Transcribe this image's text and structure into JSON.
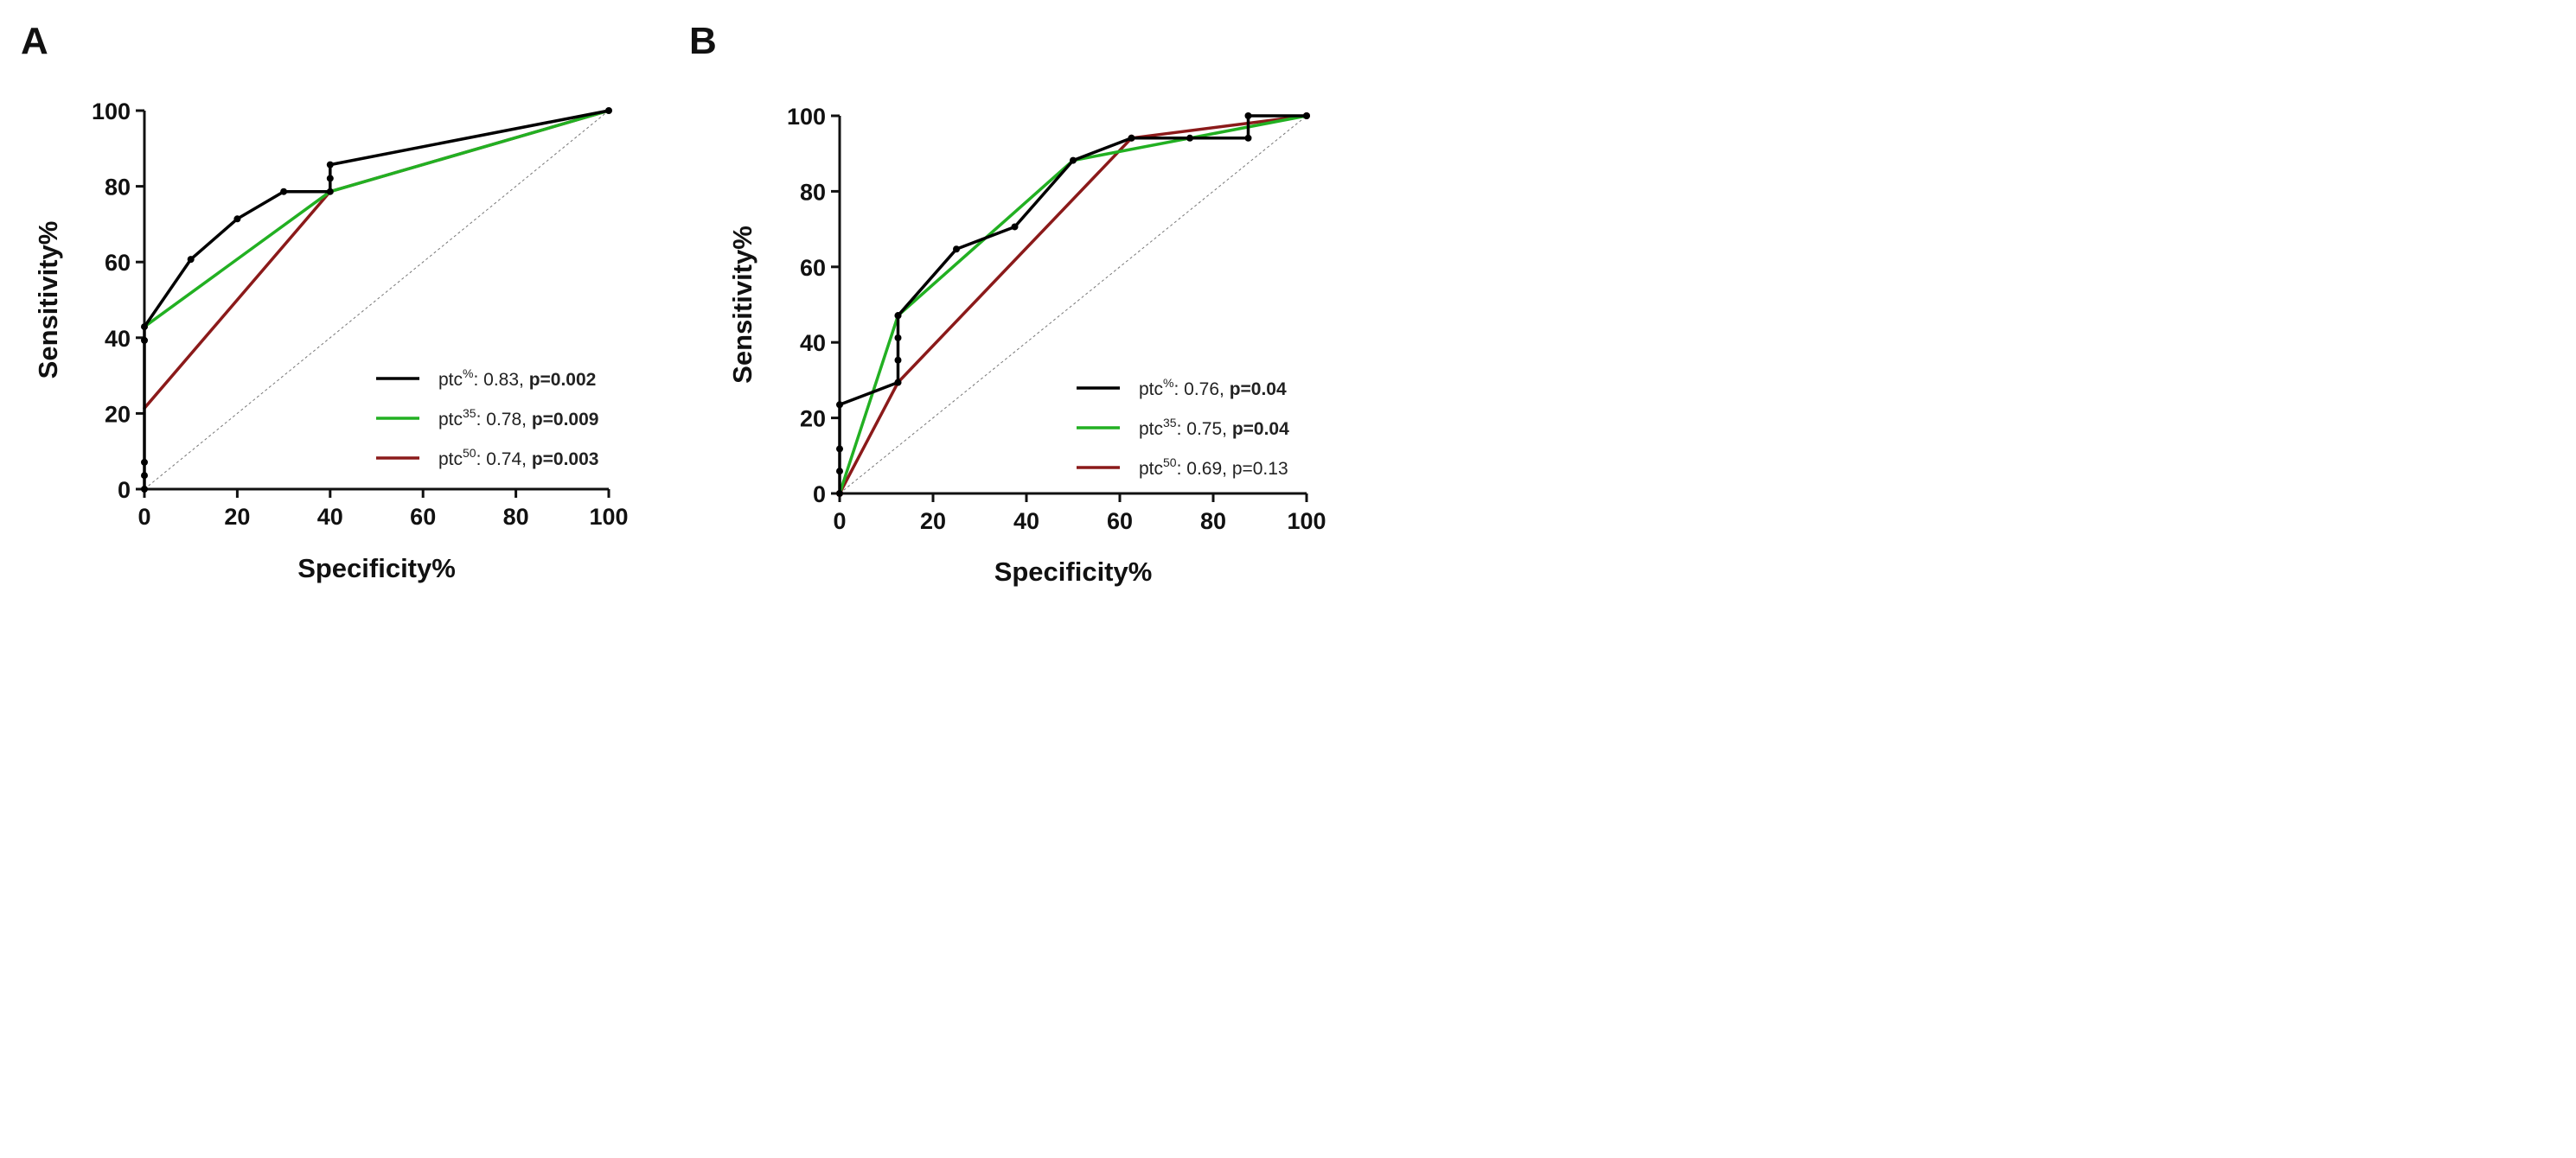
{
  "chart_data": [
    {
      "type": "line",
      "panel": "A",
      "xlabel": "Specificity%",
      "ylabel": "Sensitivity%",
      "xlim": [
        0,
        100
      ],
      "ylim": [
        0,
        100
      ],
      "xticks": [
        "0",
        "20",
        "40",
        "60",
        "80",
        "100"
      ],
      "yticks": [
        "0",
        "20",
        "40",
        "60",
        "80",
        "100"
      ],
      "reference_line": true,
      "legend_position": "bottom-right",
      "series": [
        {
          "name": "ptc%",
          "label_base": "ptc",
          "label_sup": "%",
          "label_value": ": 0.83, ",
          "label_p": "p=0.002",
          "p_bold": true,
          "color": "#000000",
          "markers": true,
          "x": [
            0,
            0,
            0,
            0,
            0,
            10,
            20,
            30,
            40,
            40,
            40,
            100
          ],
          "y": [
            0,
            3.6,
            7.1,
            39.3,
            42.9,
            60.7,
            71.4,
            78.6,
            78.6,
            82.1,
            85.7,
            100
          ]
        },
        {
          "name": "ptc35",
          "label_base": "ptc",
          "label_sup": "35",
          "label_value": ": 0.78, ",
          "label_p": "p=0.009",
          "p_bold": true,
          "color": "#22b022",
          "markers": false,
          "x": [
            0,
            40,
            100
          ],
          "y": [
            42.9,
            78.6,
            100
          ]
        },
        {
          "name": "ptc50",
          "label_base": "ptc",
          "label_sup": "50",
          "label_value": ": 0.74, ",
          "label_p": "p=0.003",
          "p_bold": true,
          "color": "#8b1a1a",
          "markers": false,
          "x": [
            0,
            40,
            100
          ],
          "y": [
            21.4,
            78.6,
            100
          ]
        }
      ]
    },
    {
      "type": "line",
      "panel": "B",
      "xlabel": "Specificity%",
      "ylabel": "Sensitivity%",
      "xlim": [
        0,
        100
      ],
      "ylim": [
        0,
        100
      ],
      "xticks": [
        "0",
        "20",
        "40",
        "60",
        "80",
        "100"
      ],
      "yticks": [
        "0",
        "20",
        "40",
        "60",
        "80",
        "100"
      ],
      "reference_line": true,
      "legend_position": "bottom-right",
      "series": [
        {
          "name": "ptc%",
          "label_base": "ptc",
          "label_sup": "%",
          "label_value": ": 0.76, ",
          "label_p": "p=0.04",
          "p_bold": true,
          "color": "#000000",
          "markers": true,
          "x": [
            0,
            0,
            0,
            0,
            12.5,
            12.5,
            12.5,
            12.5,
            12.5,
            25,
            37.5,
            50,
            62.5,
            75,
            87.5,
            87.5,
            100
          ],
          "y": [
            0,
            5.9,
            11.8,
            23.5,
            29.4,
            35.3,
            41.2,
            47.1,
            47.1,
            64.7,
            70.6,
            88.2,
            94.1,
            94.1,
            94.1,
            100,
            100
          ]
        },
        {
          "name": "ptc35",
          "label_base": "ptc",
          "label_sup": "35",
          "label_value": ": 0.75, ",
          "label_p": "p=0.04",
          "p_bold": true,
          "color": "#22b022",
          "markers": false,
          "x": [
            0,
            12.5,
            50,
            100
          ],
          "y": [
            0,
            47.1,
            88.2,
            100
          ]
        },
        {
          "name": "ptc50",
          "label_base": "ptc",
          "label_sup": "50",
          "label_value": ": 0.69, ",
          "label_p": "p=0.13",
          "p_bold": false,
          "color": "#8b1a1a",
          "markers": true,
          "x": [
            0,
            12.5,
            62.5,
            100
          ],
          "y": [
            0,
            29.4,
            94.1,
            100
          ]
        }
      ]
    }
  ]
}
